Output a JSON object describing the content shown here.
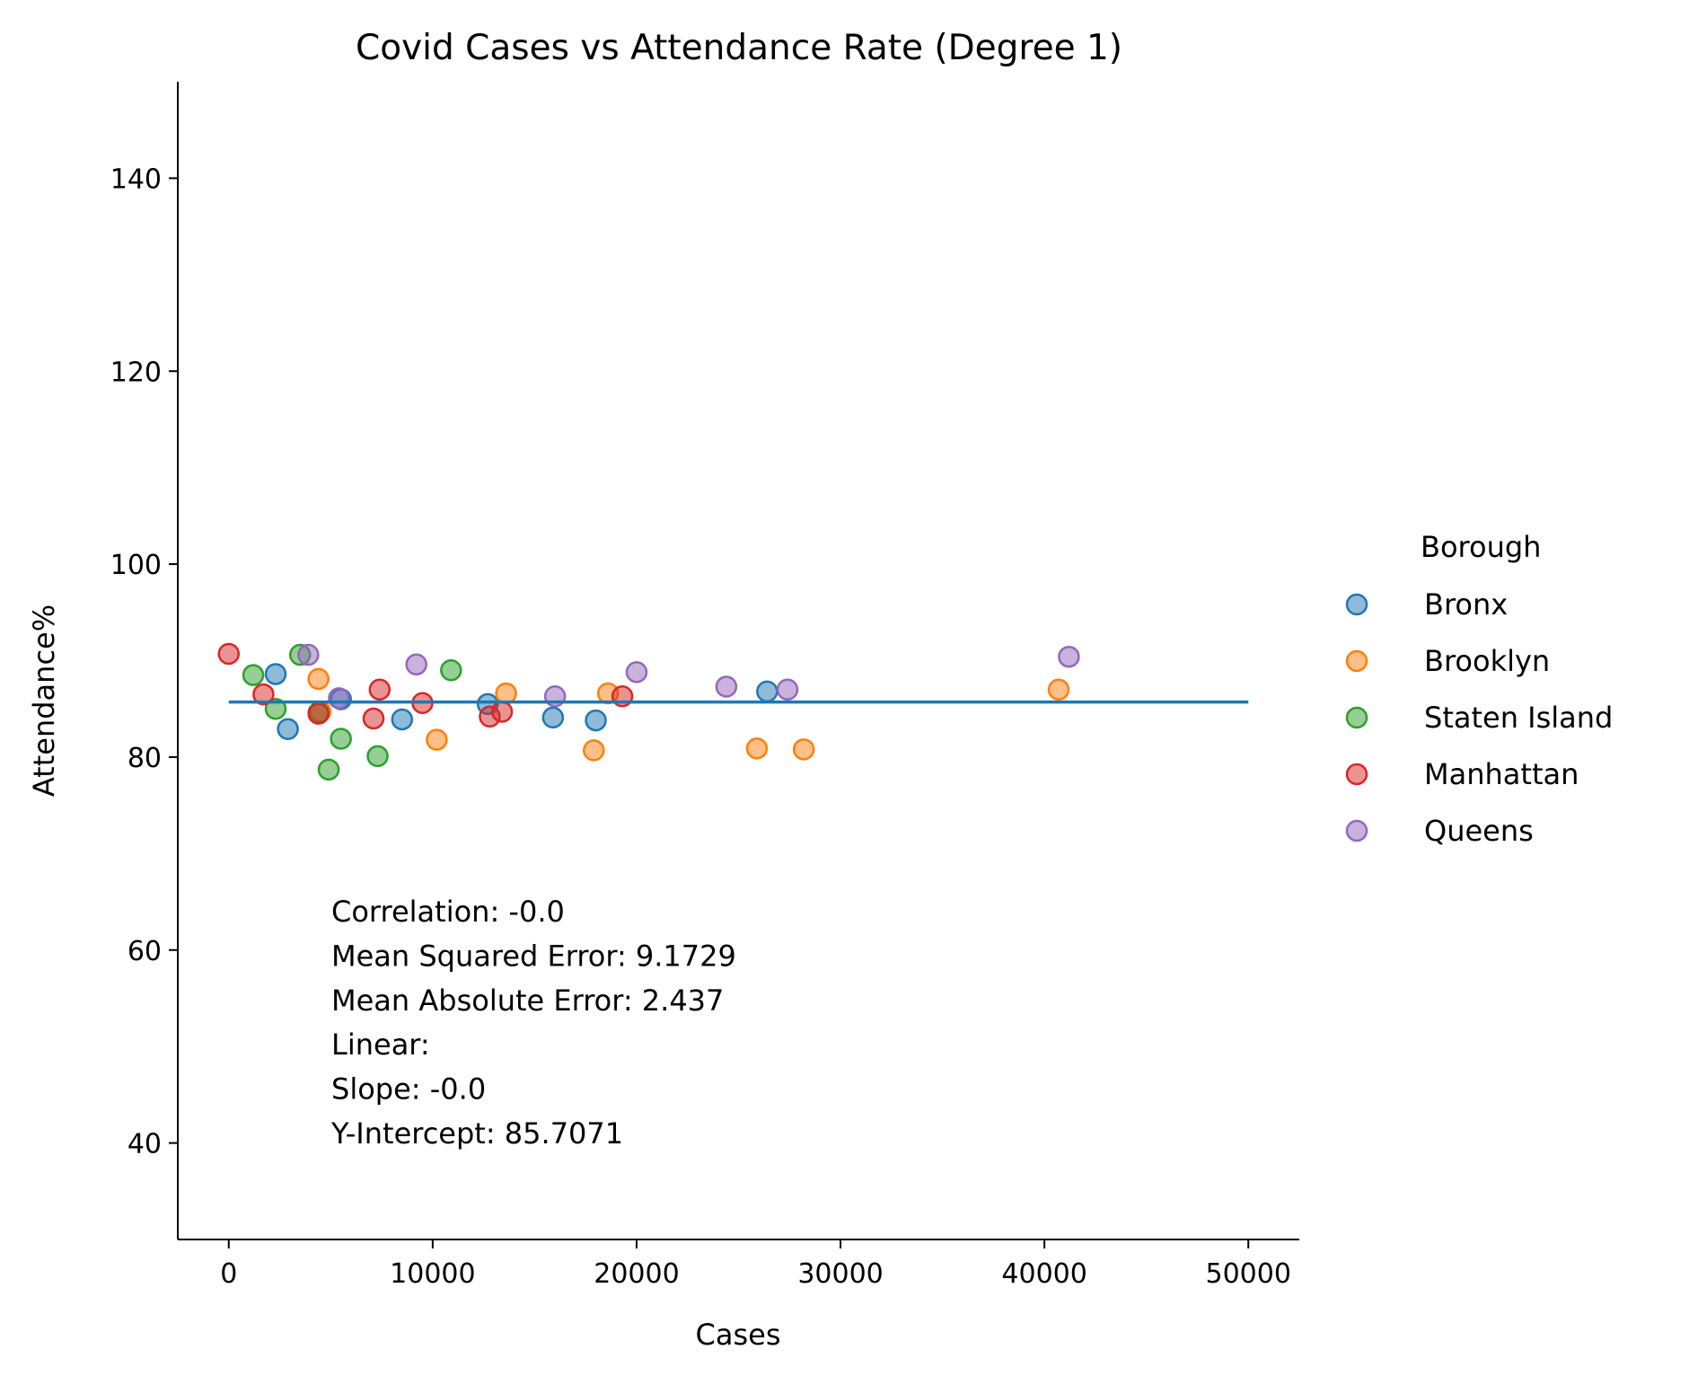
{
  "chart_data": {
    "type": "scatter",
    "title": "Covid Cases vs Attendance Rate (Degree 1)",
    "xlabel": "Cases",
    "ylabel": "Attendance%",
    "xlim": [
      -2500,
      52500
    ],
    "ylim": [
      30,
      150
    ],
    "xticks": [
      0,
      10000,
      20000,
      30000,
      40000,
      50000
    ],
    "yticks": [
      40,
      60,
      80,
      100,
      120,
      140
    ],
    "grid": false,
    "legend": {
      "title": "Borough",
      "placement": "right"
    },
    "series": [
      {
        "name": "Bronx",
        "color": "#1f77b4",
        "points": [
          {
            "x": 2300,
            "y": 88.6
          },
          {
            "x": 2900,
            "y": 82.9
          },
          {
            "x": 5500,
            "y": 86.0
          },
          {
            "x": 8500,
            "y": 83.9
          },
          {
            "x": 12700,
            "y": 85.5
          },
          {
            "x": 15900,
            "y": 84.1
          },
          {
            "x": 18000,
            "y": 83.8
          },
          {
            "x": 26400,
            "y": 86.8
          }
        ]
      },
      {
        "name": "Brooklyn",
        "color": "#ff7f0e",
        "points": [
          {
            "x": 4400,
            "y": 88.1
          },
          {
            "x": 4500,
            "y": 84.7
          },
          {
            "x": 10200,
            "y": 81.8
          },
          {
            "x": 13600,
            "y": 86.6
          },
          {
            "x": 17900,
            "y": 80.7
          },
          {
            "x": 18600,
            "y": 86.6
          },
          {
            "x": 25900,
            "y": 80.9
          },
          {
            "x": 28200,
            "y": 80.8
          },
          {
            "x": 40700,
            "y": 87.0
          }
        ]
      },
      {
        "name": "Staten Island",
        "color": "#2ca02c",
        "points": [
          {
            "x": 1200,
            "y": 88.5
          },
          {
            "x": 2300,
            "y": 85.0
          },
          {
            "x": 3500,
            "y": 90.6
          },
          {
            "x": 4400,
            "y": 84.6
          },
          {
            "x": 4900,
            "y": 78.7
          },
          {
            "x": 5500,
            "y": 81.9
          },
          {
            "x": 7300,
            "y": 80.1
          },
          {
            "x": 10900,
            "y": 89.0
          }
        ]
      },
      {
        "name": "Manhattan",
        "color": "#d62728",
        "points": [
          {
            "x": 0,
            "y": 90.7
          },
          {
            "x": 1700,
            "y": 86.5
          },
          {
            "x": 4400,
            "y": 84.5
          },
          {
            "x": 7100,
            "y": 84.0
          },
          {
            "x": 7400,
            "y": 87.0
          },
          {
            "x": 9500,
            "y": 85.6
          },
          {
            "x": 12800,
            "y": 84.2
          },
          {
            "x": 13400,
            "y": 84.7
          },
          {
            "x": 19300,
            "y": 86.3
          }
        ]
      },
      {
        "name": "Queens",
        "color": "#9467bd",
        "points": [
          {
            "x": 3900,
            "y": 90.6
          },
          {
            "x": 5400,
            "y": 86.1
          },
          {
            "x": 9200,
            "y": 89.6
          },
          {
            "x": 16000,
            "y": 86.3
          },
          {
            "x": 20000,
            "y": 88.8
          },
          {
            "x": 24400,
            "y": 87.3
          },
          {
            "x": 27400,
            "y": 87.0
          },
          {
            "x": 41200,
            "y": 90.4
          }
        ]
      }
    ],
    "fit_line": {
      "color": "#1f77b4",
      "x": [
        0,
        50000
      ],
      "y": [
        85.7071,
        85.7071
      ]
    },
    "stats": [
      "Correlation: -0.0",
      "Mean Squared Error: 9.1729",
      "Mean Absolute Error: 2.437",
      "Linear:",
      "Slope: -0.0",
      "Y-Intercept: 85.7071"
    ]
  }
}
